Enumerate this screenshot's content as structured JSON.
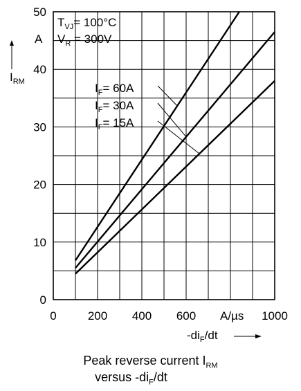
{
  "chart_data": {
    "type": "line",
    "title": "",
    "xlabel": {
      "main": "-di",
      "sub": "F",
      "rest": "/dt"
    },
    "xunit": "A/µs",
    "ylabel": {
      "main": "I",
      "sub": "RM"
    },
    "yunit": "A",
    "xlim": [
      0,
      1000
    ],
    "ylim": [
      0,
      50
    ],
    "xticks": [
      0,
      200,
      400,
      600,
      1000
    ],
    "yticks": [
      0,
      10,
      20,
      30,
      40,
      50
    ],
    "grid": true,
    "conditions": [
      {
        "main": "T",
        "sub": "VJ",
        "rest": "= 100°C"
      },
      {
        "main": "V",
        "sub": "R",
        "rest": " = 300V"
      }
    ],
    "series": [
      {
        "name": "60A",
        "label": {
          "main": "I",
          "sub": "F",
          "rest": "= 60A"
        },
        "x": [
          100,
          840
        ],
        "y": [
          6.8,
          50
        ]
      },
      {
        "name": "30A",
        "label": {
          "main": "I",
          "sub": "F",
          "rest": "= 30A"
        },
        "x": [
          100,
          1000
        ],
        "y": [
          5.5,
          46.5
        ]
      },
      {
        "name": "15A",
        "label": {
          "main": "I",
          "sub": "F",
          "rest": "= 15A"
        },
        "x": [
          100,
          1000
        ],
        "y": [
          4.5,
          38
        ]
      }
    ]
  },
  "caption": {
    "line1_main": "Peak reverse current I",
    "line1_sub": "RM",
    "line2_main": "versus  -di",
    "line2_sub": "F",
    "line2_rest": "/dt"
  }
}
